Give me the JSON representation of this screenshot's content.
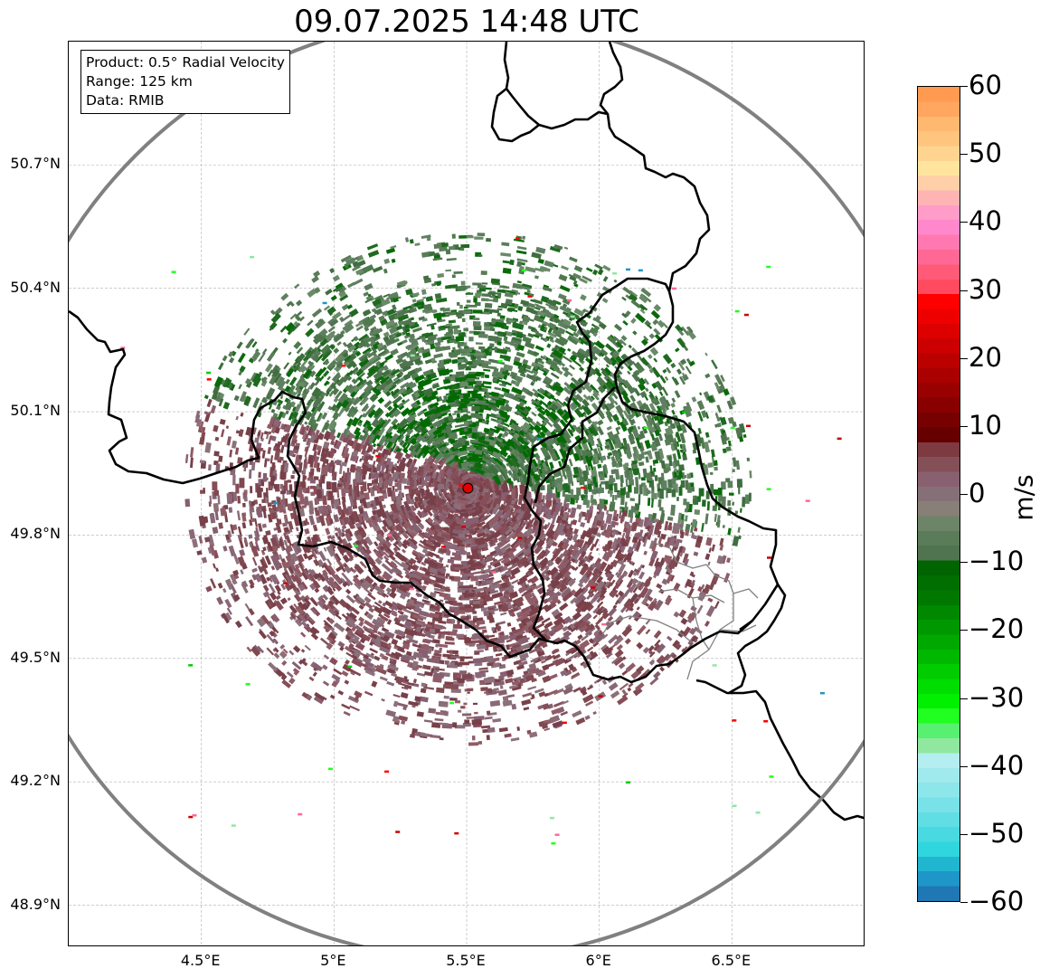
{
  "title": "09.07.2025 14:48 UTC",
  "info_box": {
    "product": "Product: 0.5° Radial Velocity",
    "range": "Range: 125 km",
    "data": "Data: RMIB"
  },
  "map": {
    "lon_range": [
      4.0,
      7.0
    ],
    "lat_range": [
      48.8,
      51.0
    ],
    "radar_site": {
      "lon": 5.505,
      "lat": 49.914
    },
    "range_ring_km": 125,
    "range_ring_color": "#808080",
    "radar_marker_color": "#e00000",
    "lat_ticks": [
      {
        "value": 50.7,
        "label": "50.7°N"
      },
      {
        "value": 50.4,
        "label": "50.4°N"
      },
      {
        "value": 50.1,
        "label": "50.1°N"
      },
      {
        "value": 49.8,
        "label": "49.8°N"
      },
      {
        "value": 49.5,
        "label": "49.5°N"
      },
      {
        "value": 49.2,
        "label": "49.2°N"
      },
      {
        "value": 48.9,
        "label": "48.9°N"
      }
    ],
    "lon_ticks": [
      {
        "value": 4.5,
        "label": "4.5°E"
      },
      {
        "value": 5.0,
        "label": "5°E"
      },
      {
        "value": 5.5,
        "label": "5.5°E"
      },
      {
        "value": 6.0,
        "label": "6°E"
      },
      {
        "value": 6.5,
        "label": "6.5°E"
      }
    ],
    "gridlines": true
  },
  "colorbar": {
    "unit": "m/s",
    "min": -60,
    "max": 60,
    "ticks": [
      {
        "value": 60,
        "label": "60"
      },
      {
        "value": 50,
        "label": "50"
      },
      {
        "value": 40,
        "label": "40"
      },
      {
        "value": 30,
        "label": "30"
      },
      {
        "value": 20,
        "label": "20"
      },
      {
        "value": 10,
        "label": "10"
      },
      {
        "value": 0,
        "label": "0"
      },
      {
        "value": -10,
        "label": "−10"
      },
      {
        "value": -20,
        "label": "−20"
      },
      {
        "value": -30,
        "label": "−30"
      },
      {
        "value": -40,
        "label": "−40"
      },
      {
        "value": -50,
        "label": "−50"
      },
      {
        "value": -60,
        "label": "−60"
      }
    ],
    "colors": [
      "#ff9a50",
      "#ffa660",
      "#ffb870",
      "#ffc47e",
      "#ffd490",
      "#ffe49e",
      "#ffd0a8",
      "#ffb4b4",
      "#ff9cc8",
      "#ff88cc",
      "#ff78b0",
      "#ff6894",
      "#ff5a78",
      "#ff4a60",
      "#ff0000",
      "#ee0000",
      "#dd0000",
      "#cc0000",
      "#bb0000",
      "#aa0000",
      "#990000",
      "#880000",
      "#770000",
      "#660000",
      "#7d3a40",
      "#845058",
      "#886070",
      "#867078",
      "#888078",
      "#6e8468",
      "#5a7c58",
      "#507450",
      "#006400",
      "#006e00",
      "#007800",
      "#008800",
      "#009800",
      "#00a800",
      "#00b800",
      "#00cc00",
      "#00dd00",
      "#00f000",
      "#20ff20",
      "#58f070",
      "#90e8a0",
      "#b4eef0",
      "#a0eaee",
      "#8ce6ea",
      "#78e2e8",
      "#60dee4",
      "#48dae0",
      "#30d6de",
      "#20b6d0",
      "#1e96c8",
      "#1f77b4"
    ]
  }
}
